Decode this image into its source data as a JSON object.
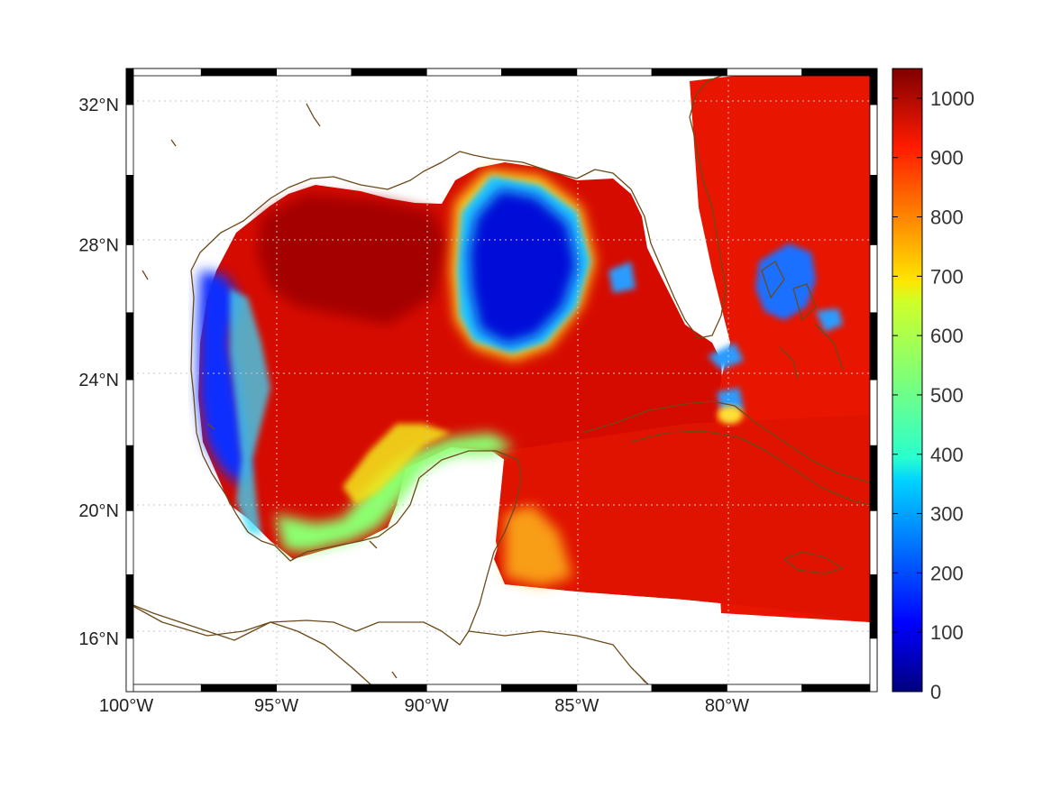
{
  "chart_data": {
    "type": "heatmap",
    "title": "",
    "xlabel": "",
    "ylabel": "",
    "xlim": [
      -100,
      -75
    ],
    "ylim": [
      14.3,
      33
    ],
    "x_ticks": [
      {
        "value": -100,
        "label": "100°W"
      },
      {
        "value": -95,
        "label": "95°W"
      },
      {
        "value": -90,
        "label": "90°W"
      },
      {
        "value": -85,
        "label": "85°W"
      },
      {
        "value": -80,
        "label": "80°W"
      }
    ],
    "y_ticks": [
      {
        "value": 16,
        "label": "16°N"
      },
      {
        "value": 20,
        "label": "20°N"
      },
      {
        "value": 24,
        "label": "24°N"
      },
      {
        "value": 28,
        "label": "28°N"
      },
      {
        "value": 32,
        "label": "32°N"
      }
    ],
    "colorbar": {
      "colormap": "jet",
      "range": [
        0,
        1050
      ],
      "ticks": [
        0,
        100,
        200,
        300,
        400,
        500,
        600,
        700,
        800,
        900,
        1000
      ]
    },
    "grid": true,
    "coastline_color": "#6b4a1a",
    "regions": [
      {
        "name": "western_gulf",
        "level": 990
      },
      {
        "name": "loop_current_core",
        "level": 60
      },
      {
        "name": "bay_of_campeche",
        "level": 470
      },
      {
        "name": "mexican_west_coast",
        "level": 120
      },
      {
        "name": "caribbean",
        "level": 960
      },
      {
        "name": "atlantic",
        "level": 950
      },
      {
        "name": "bahamas_banks",
        "level": 200
      }
    ]
  }
}
